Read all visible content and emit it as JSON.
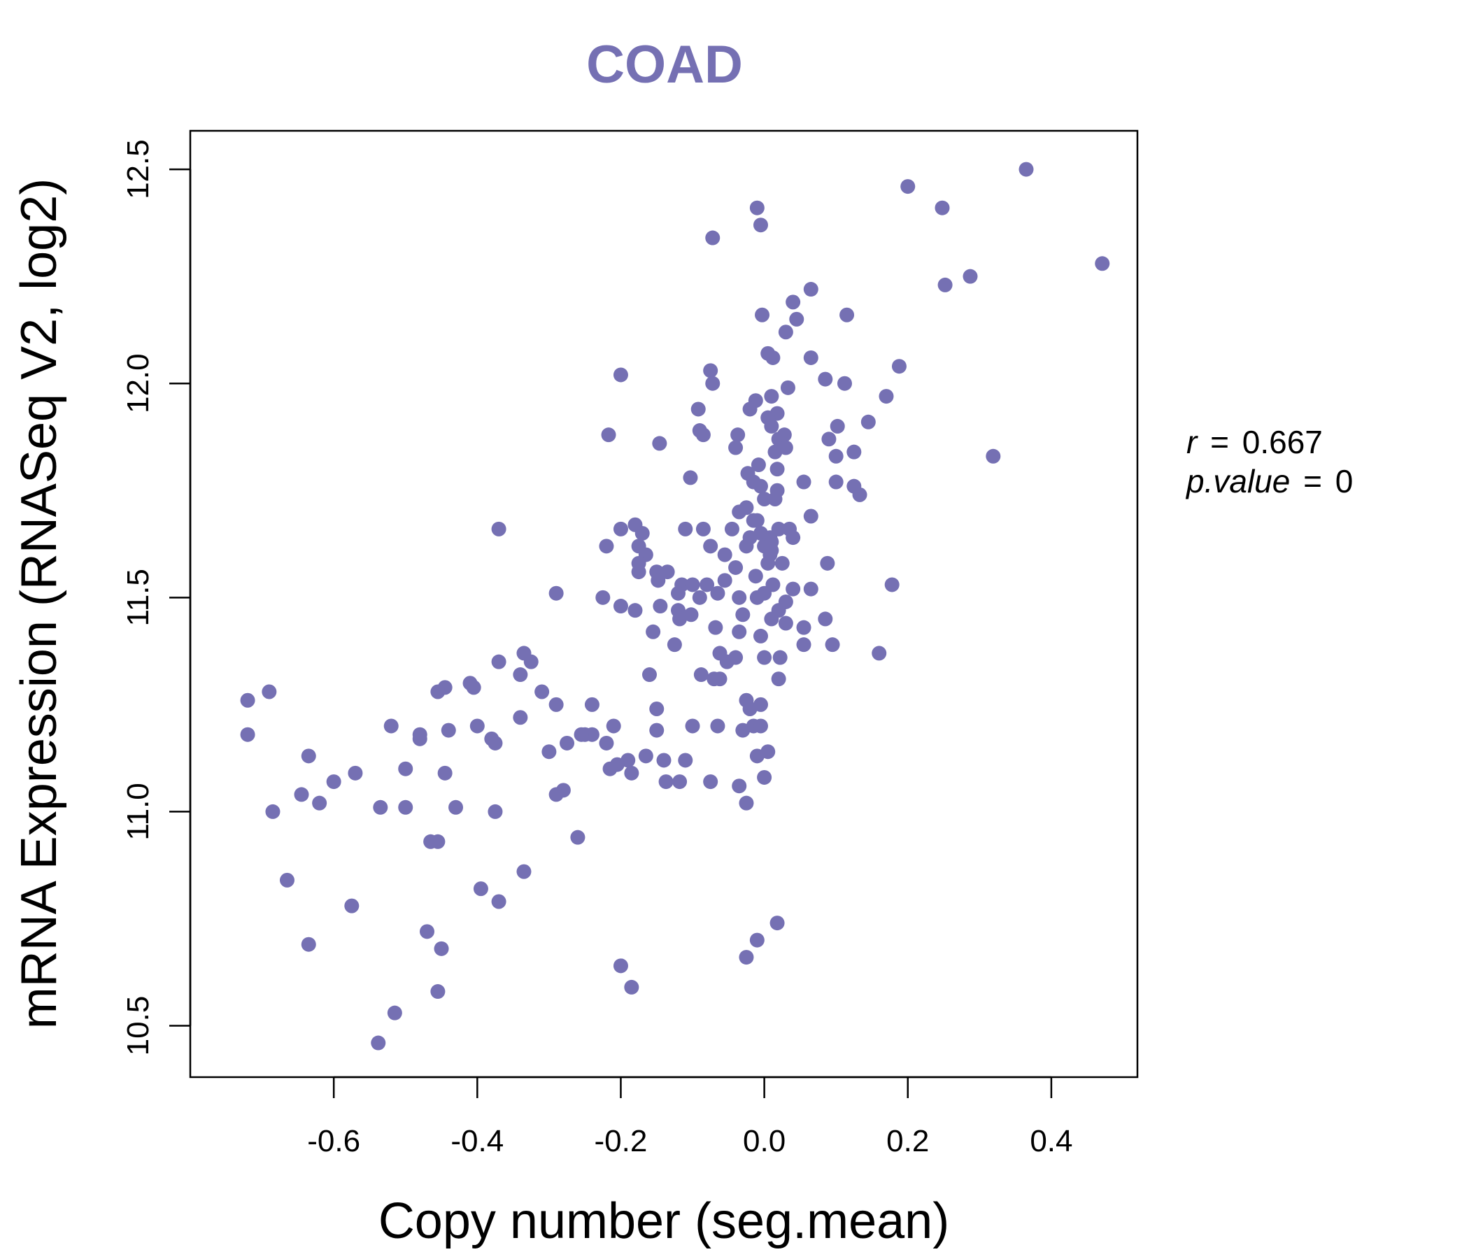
{
  "chart_data": {
    "type": "scatter",
    "title": "COAD",
    "xlabel": "Copy number (seg.mean)",
    "ylabel": "mRNA Expression (RNASeq V2, log2)",
    "xlim": [
      -0.8,
      0.52
    ],
    "ylim": [
      10.38,
      12.59
    ],
    "xticks": [
      "-0.6",
      "-0.4",
      "-0.2",
      "0.0",
      "0.2",
      "0.4"
    ],
    "yticks": [
      "10.5",
      "11.0",
      "11.5",
      "12.0",
      "12.5"
    ],
    "grid": false,
    "legend": "none",
    "annotation": {
      "r_label": "r",
      "eq": "=",
      "r_value": "0.667",
      "p_label": "p.value",
      "p_value": "0"
    },
    "colors": {
      "points": "#7570b3",
      "title": "#7570b3",
      "axes": "#000000"
    },
    "points": [
      [
        0.365,
        12.5
      ],
      [
        0.2,
        12.46
      ],
      [
        0.248,
        12.41
      ],
      [
        0.471,
        12.28
      ],
      [
        0.287,
        12.25
      ],
      [
        0.252,
        12.23
      ],
      [
        -0.01,
        12.41
      ],
      [
        -0.005,
        12.37
      ],
      [
        -0.072,
        12.34
      ],
      [
        0.065,
        12.22
      ],
      [
        0.04,
        12.19
      ],
      [
        -0.003,
        12.16
      ],
      [
        0.115,
        12.16
      ],
      [
        0.045,
        12.15
      ],
      [
        0.03,
        12.12
      ],
      [
        0.005,
        12.07
      ],
      [
        0.012,
        12.06
      ],
      [
        0.065,
        12.06
      ],
      [
        0.188,
        12.04
      ],
      [
        -0.075,
        12.03
      ],
      [
        -0.2,
        12.02
      ],
      [
        0.085,
        12.01
      ],
      [
        -0.072,
        12.0
      ],
      [
        0.112,
        12.0
      ],
      [
        0.033,
        11.99
      ],
      [
        0.17,
        11.97
      ],
      [
        0.01,
        11.97
      ],
      [
        -0.012,
        11.96
      ],
      [
        -0.02,
        11.94
      ],
      [
        -0.092,
        11.94
      ],
      [
        0.018,
        11.93
      ],
      [
        0.145,
        11.91
      ],
      [
        0.102,
        11.9
      ],
      [
        -0.09,
        11.89
      ],
      [
        -0.037,
        11.88
      ],
      [
        -0.085,
        11.88
      ],
      [
        -0.217,
        11.88
      ],
      [
        0.09,
        11.87
      ],
      [
        -0.146,
        11.86
      ],
      [
        -0.04,
        11.85
      ],
      [
        0.125,
        11.84
      ],
      [
        0.1,
        11.83
      ],
      [
        0.319,
        11.83
      ],
      [
        -0.008,
        11.81
      ],
      [
        -0.023,
        11.79
      ],
      [
        0.018,
        11.8
      ],
      [
        -0.103,
        11.78
      ],
      [
        0.055,
        11.77
      ],
      [
        0.1,
        11.77
      ],
      [
        0.125,
        11.76
      ],
      [
        -0.015,
        11.77
      ],
      [
        -0.005,
        11.76
      ],
      [
        0.018,
        11.75
      ],
      [
        0.133,
        11.74
      ],
      [
        0.0,
        11.73
      ],
      [
        0.015,
        11.73
      ],
      [
        -0.025,
        11.71
      ],
      [
        -0.035,
        11.7
      ],
      [
        -0.015,
        11.68
      ],
      [
        0.065,
        11.69
      ],
      [
        -0.37,
        11.66
      ],
      [
        -0.18,
        11.67
      ],
      [
        0.035,
        11.66
      ],
      [
        -0.2,
        11.66
      ],
      [
        -0.11,
        11.66
      ],
      [
        -0.085,
        11.66
      ],
      [
        -0.045,
        11.66
      ],
      [
        -0.005,
        11.65
      ],
      [
        0.008,
        11.64
      ],
      [
        0.04,
        11.64
      ],
      [
        -0.17,
        11.65
      ],
      [
        -0.22,
        11.62
      ],
      [
        -0.175,
        11.62
      ],
      [
        -0.075,
        11.62
      ],
      [
        -0.025,
        11.62
      ],
      [
        0.01,
        11.61
      ],
      [
        -0.165,
        11.6
      ],
      [
        -0.055,
        11.6
      ],
      [
        0.008,
        11.6
      ],
      [
        0.025,
        11.58
      ],
      [
        -0.175,
        11.58
      ],
      [
        0.088,
        11.58
      ],
      [
        -0.04,
        11.57
      ],
      [
        -0.175,
        11.56
      ],
      [
        -0.15,
        11.56
      ],
      [
        -0.135,
        11.56
      ],
      [
        -0.012,
        11.55
      ],
      [
        -0.148,
        11.54
      ],
      [
        -0.115,
        11.53
      ],
      [
        -0.1,
        11.53
      ],
      [
        -0.08,
        11.53
      ],
      [
        -0.055,
        11.54
      ],
      [
        0.012,
        11.53
      ],
      [
        0.065,
        11.52
      ],
      [
        0.04,
        11.52
      ],
      [
        -0.29,
        11.51
      ],
      [
        -0.12,
        11.51
      ],
      [
        -0.065,
        11.51
      ],
      [
        0.0,
        11.51
      ],
      [
        -0.225,
        11.5
      ],
      [
        -0.09,
        11.5
      ],
      [
        -0.035,
        11.5
      ],
      [
        -0.01,
        11.5
      ],
      [
        0.03,
        11.49
      ],
      [
        -0.2,
        11.48
      ],
      [
        -0.145,
        11.48
      ],
      [
        -0.18,
        11.47
      ],
      [
        0.02,
        11.47
      ],
      [
        0.178,
        11.53
      ],
      [
        -0.12,
        11.47
      ],
      [
        -0.102,
        11.46
      ],
      [
        -0.03,
        11.46
      ],
      [
        0.01,
        11.45
      ],
      [
        -0.118,
        11.45
      ],
      [
        0.085,
        11.45
      ],
      [
        0.03,
        11.44
      ],
      [
        0.055,
        11.43
      ],
      [
        -0.068,
        11.43
      ],
      [
        -0.155,
        11.42
      ],
      [
        -0.035,
        11.42
      ],
      [
        -0.005,
        11.41
      ],
      [
        0.055,
        11.39
      ],
      [
        0.095,
        11.39
      ],
      [
        -0.125,
        11.39
      ],
      [
        -0.335,
        11.37
      ],
      [
        -0.062,
        11.37
      ],
      [
        0.16,
        11.37
      ],
      [
        -0.37,
        11.35
      ],
      [
        -0.325,
        11.35
      ],
      [
        -0.04,
        11.36
      ],
      [
        -0.052,
        11.35
      ],
      [
        0.022,
        11.36
      ],
      [
        0.0,
        11.36
      ],
      [
        -0.088,
        11.32
      ],
      [
        -0.16,
        11.32
      ],
      [
        -0.34,
        11.32
      ],
      [
        -0.07,
        11.31
      ],
      [
        -0.062,
        11.31
      ],
      [
        0.02,
        11.31
      ],
      [
        -0.41,
        11.3
      ],
      [
        -0.405,
        11.29
      ],
      [
        -0.445,
        11.29
      ],
      [
        -0.455,
        11.28
      ],
      [
        -0.31,
        11.28
      ],
      [
        -0.69,
        11.28
      ],
      [
        -0.72,
        11.26
      ],
      [
        -0.29,
        11.25
      ],
      [
        -0.24,
        11.25
      ],
      [
        -0.025,
        11.26
      ],
      [
        -0.005,
        11.25
      ],
      [
        -0.02,
        11.24
      ],
      [
        -0.15,
        11.24
      ],
      [
        -0.34,
        11.22
      ],
      [
        -0.52,
        11.2
      ],
      [
        -0.4,
        11.2
      ],
      [
        -0.1,
        11.2
      ],
      [
        -0.065,
        11.2
      ],
      [
        -0.25,
        11.18
      ],
      [
        -0.24,
        11.18
      ],
      [
        -0.03,
        11.19
      ],
      [
        -0.015,
        11.2
      ],
      [
        -0.005,
        11.2
      ],
      [
        -0.21,
        11.2
      ],
      [
        -0.44,
        11.19
      ],
      [
        -0.48,
        11.18
      ],
      [
        -0.48,
        11.17
      ],
      [
        -0.15,
        11.19
      ],
      [
        -0.72,
        11.18
      ],
      [
        -0.38,
        11.17
      ],
      [
        -0.375,
        11.16
      ],
      [
        -0.275,
        11.16
      ],
      [
        -0.255,
        11.18
      ],
      [
        -0.22,
        11.16
      ],
      [
        -0.3,
        11.14
      ],
      [
        0.005,
        11.14
      ],
      [
        -0.01,
        11.13
      ],
      [
        -0.635,
        11.13
      ],
      [
        -0.165,
        11.13
      ],
      [
        -0.19,
        11.12
      ],
      [
        -0.14,
        11.12
      ],
      [
        -0.11,
        11.12
      ],
      [
        -0.205,
        11.11
      ],
      [
        -0.215,
        11.1
      ],
      [
        -0.5,
        11.1
      ],
      [
        -0.445,
        11.09
      ],
      [
        -0.185,
        11.09
      ],
      [
        -0.57,
        11.09
      ],
      [
        0.0,
        11.08
      ],
      [
        -0.6,
        11.07
      ],
      [
        -0.137,
        11.07
      ],
      [
        -0.118,
        11.07
      ],
      [
        -0.075,
        11.07
      ],
      [
        -0.035,
        11.06
      ],
      [
        -0.28,
        11.05
      ],
      [
        -0.29,
        11.04
      ],
      [
        -0.645,
        11.04
      ],
      [
        -0.62,
        11.02
      ],
      [
        -0.025,
        11.02
      ],
      [
        -0.5,
        11.01
      ],
      [
        -0.535,
        11.01
      ],
      [
        -0.43,
        11.01
      ],
      [
        -0.685,
        11.0
      ],
      [
        -0.375,
        11.0
      ],
      [
        -0.26,
        10.94
      ],
      [
        -0.465,
        10.93
      ],
      [
        -0.455,
        10.93
      ],
      [
        -0.335,
        10.86
      ],
      [
        -0.665,
        10.84
      ],
      [
        -0.395,
        10.82
      ],
      [
        -0.37,
        10.79
      ],
      [
        -0.575,
        10.78
      ],
      [
        0.018,
        10.74
      ],
      [
        -0.47,
        10.72
      ],
      [
        -0.01,
        10.7
      ],
      [
        -0.635,
        10.69
      ],
      [
        -0.45,
        10.68
      ],
      [
        -0.025,
        10.66
      ],
      [
        -0.2,
        10.64
      ],
      [
        -0.185,
        10.59
      ],
      [
        -0.455,
        10.58
      ],
      [
        -0.515,
        10.53
      ],
      [
        -0.538,
        10.46
      ],
      [
        0.01,
        11.9
      ],
      [
        0.02,
        11.87
      ],
      [
        0.028,
        11.88
      ],
      [
        0.005,
        11.92
      ],
      [
        0.015,
        11.84
      ],
      [
        0.03,
        11.85
      ],
      [
        0.0,
        11.62
      ],
      [
        0.01,
        11.63
      ],
      [
        -0.02,
        11.64
      ],
      [
        0.02,
        11.66
      ],
      [
        -0.01,
        11.68
      ],
      [
        0.005,
        11.58
      ]
    ]
  }
}
